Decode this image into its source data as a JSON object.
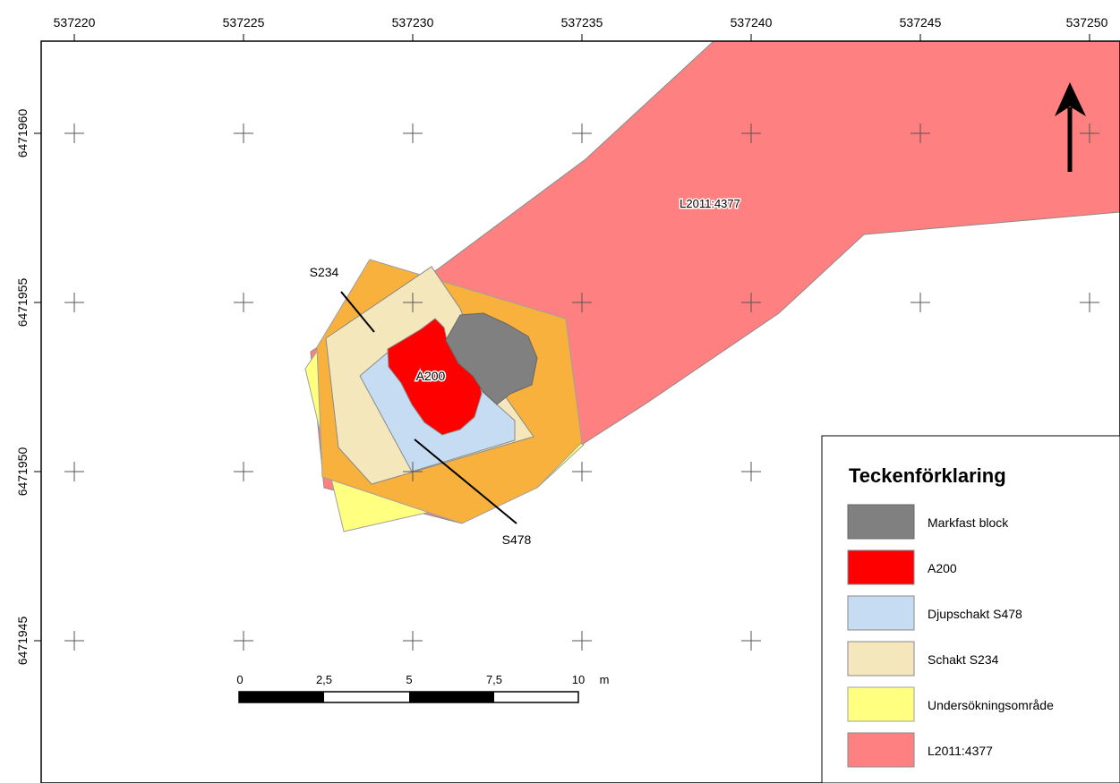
{
  "axes": {
    "x_ticks": [
      "537220",
      "537225",
      "537230",
      "537235",
      "537240",
      "537245",
      "537250"
    ],
    "y_ticks": [
      "6471960",
      "6471955",
      "6471950",
      "6471945"
    ]
  },
  "features": {
    "l2011": "L2011:4377",
    "s234": "S234",
    "a200": "A200",
    "s478": "S478"
  },
  "scale_bar": {
    "labels": [
      "0",
      "2,5",
      "5",
      "7,5",
      "10"
    ],
    "unit": "m"
  },
  "legend": {
    "title": "Teckenförklaring",
    "items": [
      {
        "label": "Markfast block",
        "color": "#808080"
      },
      {
        "label": "A200",
        "color": "#ff0000"
      },
      {
        "label": "Djupschakt S478",
        "color": "#c6dcf2"
      },
      {
        "label": "Schakt S234",
        "color": "#f5e7bc"
      },
      {
        "label": "Undersökningsområde",
        "color": "#ffff80"
      },
      {
        "label": "L2011:4377",
        "color": "#ff8080"
      }
    ]
  },
  "colors": {
    "l2011": "#ff8080",
    "s478_area": "#f7b13c",
    "survey_area": "#ffff80",
    "s234": "#f5e7bc",
    "deep_shaft": "#c6dcf2",
    "a200": "#ff0000",
    "block": "#808080"
  },
  "north_arrow": "north-arrow-icon"
}
